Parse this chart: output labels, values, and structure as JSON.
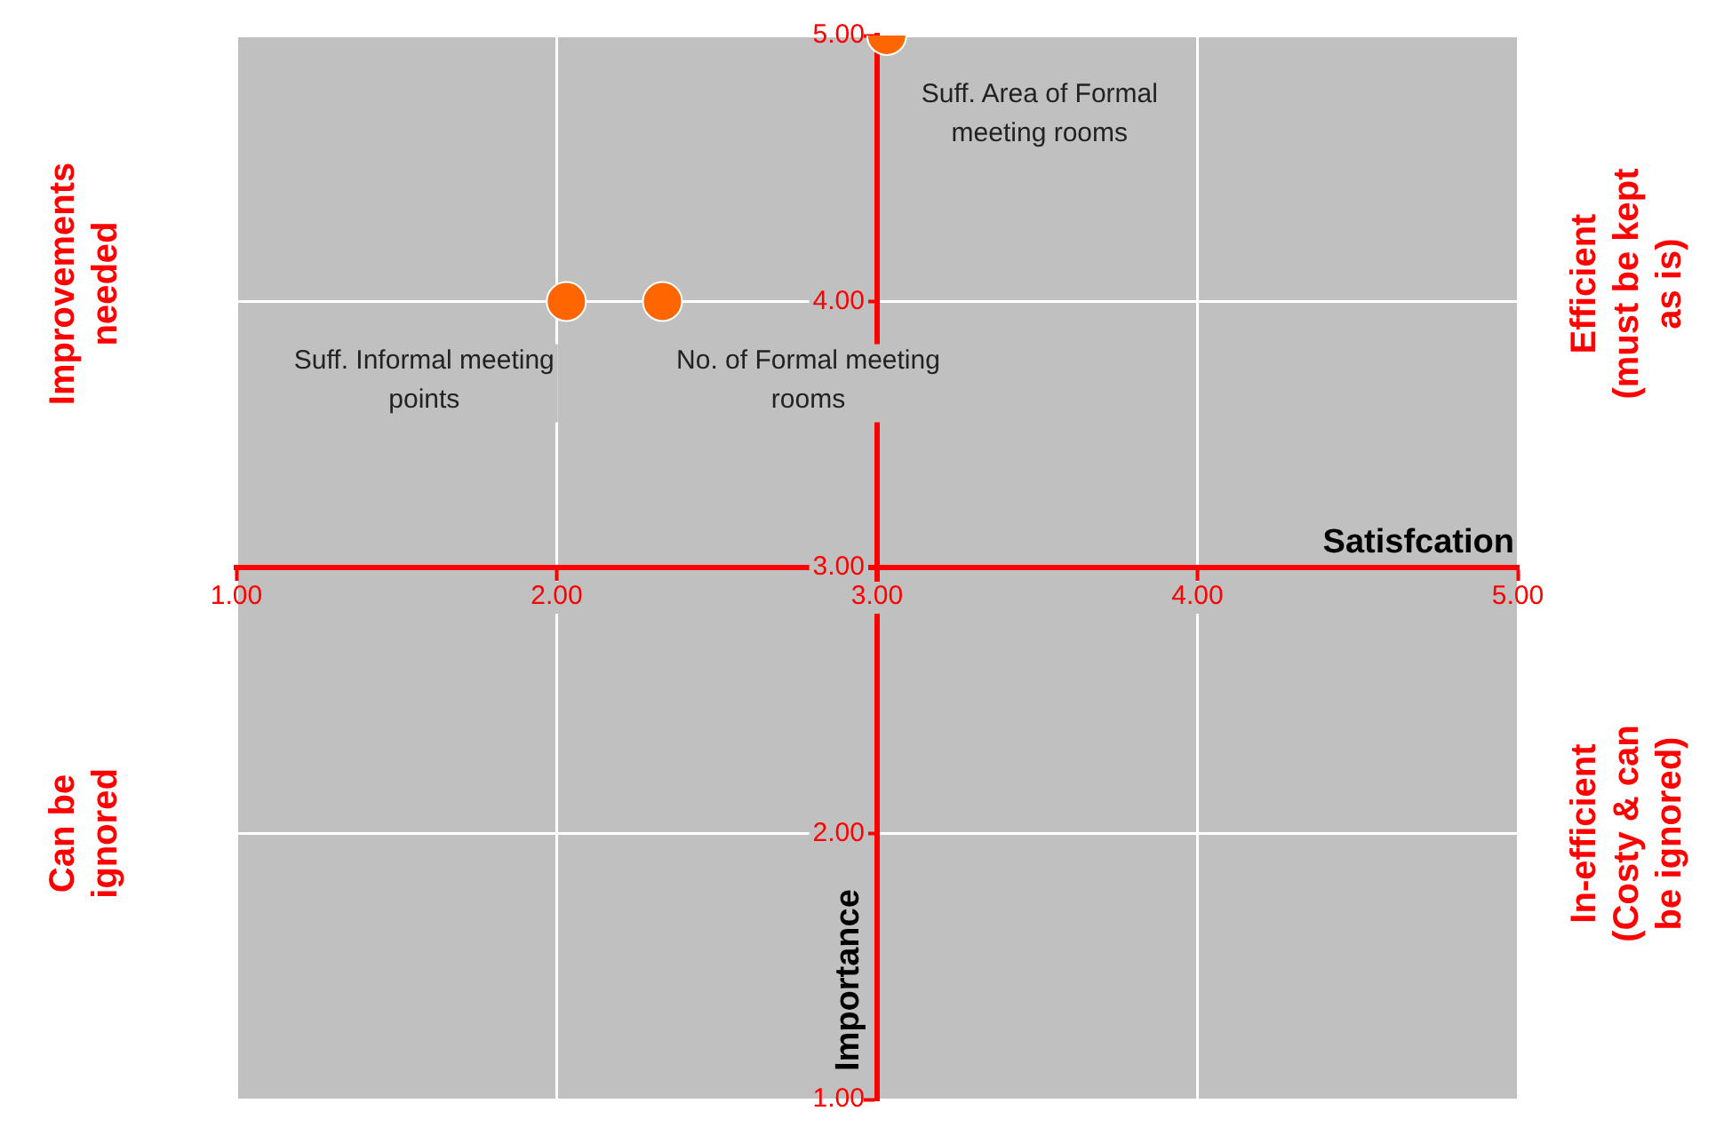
{
  "chart_data": {
    "type": "scatter",
    "xlabel": "Satisfcation",
    "ylabel": "Importance",
    "series": [
      {
        "color": "#ff6600",
        "x": [
          2.03,
          2.33,
          3.03
        ],
        "values": [
          4.0,
          4.0,
          5.0
        ]
      }
    ],
    "xlim": [
      1,
      5
    ],
    "xticks": [
      {
        "value": 1,
        "label": "1.00"
      },
      {
        "value": 2,
        "label": "2.00"
      },
      {
        "value": 3,
        "label": "3.00"
      },
      {
        "value": 4,
        "label": "4.00"
      },
      {
        "value": 5,
        "label": "5.00"
      }
    ],
    "ylim": [
      1,
      5
    ],
    "yticks": [
      {
        "value": 1,
        "label": "1.00"
      },
      {
        "value": 2,
        "label": "2.00"
      },
      {
        "value": 3,
        "label": "3.00"
      },
      {
        "value": 4,
        "label": "4.00"
      },
      {
        "value": 5,
        "label": "5.00"
      }
    ],
    "grid": true,
    "legend": false,
    "marker": "circle",
    "annotations": [
      "Improvements needed",
      "Efficient (must be kept as is)",
      "Can be ignored",
      "In-efficient (Costy & can be ignored)",
      {
        "text": "Suff. Informal meeting points",
        "x": 2.03,
        "y": 4.0
      },
      {
        "text": "No. of Formal meeting rooms",
        "x": 2.33,
        "y": 4.0
      },
      {
        "text": "Suff. Area of Formal meeting rooms",
        "x": 3.03,
        "y": 5.0
      }
    ]
  }
}
